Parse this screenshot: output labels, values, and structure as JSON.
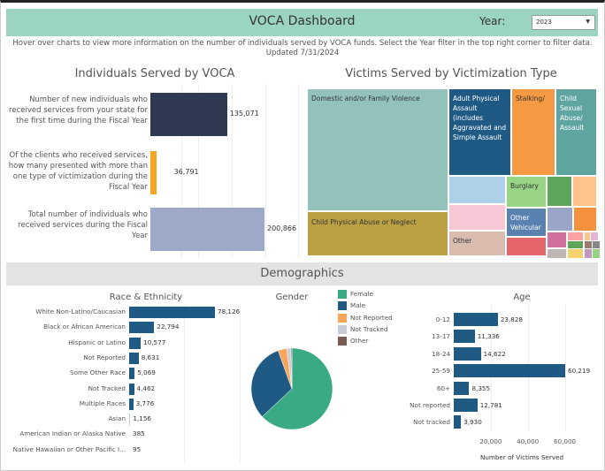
{
  "header": {
    "title": "VOCA Dashboard",
    "year_label": "Year:",
    "year_value": "2023",
    "bg": "#9bd4c0"
  },
  "subtitle": "Hover over charts to view more information on the number of individuals served by VOCA funds. Select the Year filter in the top right corner to filter data. Updated 7/31/2024",
  "individuals": {
    "title": "Individuals Served by VOCA",
    "chart_data": {
      "type": "bar",
      "orientation": "horizontal",
      "categories": [
        "Number of new individuals who received services from your state for the first time during the Fiscal Year",
        "Of the clients who received services, how many presented with more than one type of victimization during the Fiscal Year",
        "Total number of individuals who received services during the Fiscal Year"
      ],
      "values": [
        135071,
        36791,
        200866
      ],
      "labels": [
        "135,071",
        "36,791",
        "200,866"
      ],
      "colors": [
        "#2f3a52",
        "#f5a623",
        "#9ea9c9"
      ]
    }
  },
  "victimization": {
    "title": "Victims Served by Victimization Type",
    "chart_data": {
      "type": "treemap",
      "labels": [
        "Domestic and/or Family Violence",
        "Child Physical Abuse or Neglect",
        "Adult Physical Assault (includes Aggravated and Simple Assault",
        "Stalking/",
        "Child Sexual Abuse/ Assault",
        "Burglary",
        "Other Vehicular",
        "Other"
      ]
    }
  },
  "demographics": {
    "title": "Demographics"
  },
  "race": {
    "title": "Race & Ethnicity",
    "chart_data": {
      "type": "bar",
      "orientation": "horizontal",
      "categories": [
        "White Non-Latino/Caucasian",
        "Black or African American",
        "Hispanic or Latino",
        "Not Reported",
        "Some Other Race",
        "Not Tracked",
        "Multiple Races",
        "Asian",
        "American Indian or Alaska Native",
        "Native Hawaiian or Other Pacific I..."
      ],
      "values": [
        78126,
        22794,
        10577,
        8631,
        5069,
        4462,
        3776,
        1156,
        385,
        95
      ],
      "labels": [
        "78,126",
        "22,794",
        "10,577",
        "8,631",
        "5,069",
        "4,462",
        "3,776",
        "1,156",
        "385",
        "95"
      ],
      "color": "#1f5a85"
    }
  },
  "gender": {
    "title": "Gender",
    "chart_data": {
      "type": "pie",
      "categories": [
        "Female",
        "Male",
        "Not Reported",
        "Not Tracked",
        "Other"
      ],
      "values": [
        0.63,
        0.315,
        0.035,
        0.016,
        0.004
      ],
      "colors": [
        "#3aaa85",
        "#1f5a85",
        "#f9a55b",
        "#c8ccd8",
        "#7b5b4f"
      ]
    }
  },
  "age": {
    "title": "Age",
    "chart_data": {
      "type": "bar",
      "orientation": "horizontal",
      "categories": [
        "0-12",
        "13-17",
        "18-24",
        "25-59",
        "60+",
        "Not reported",
        "Not tracked"
      ],
      "values": [
        23828,
        11336,
        14622,
        60219,
        8355,
        12781,
        3930
      ],
      "labels": [
        "23,828",
        "11,336",
        "14,622",
        "60,219",
        "8,355",
        "12,781",
        "3,930"
      ],
      "xticks": [
        "20,000",
        "40,000",
        "60,000"
      ],
      "xtick_values": [
        20000,
        40000,
        60000
      ],
      "xlabel": "Number of Victims Served",
      "color": "#1f5a85"
    }
  }
}
